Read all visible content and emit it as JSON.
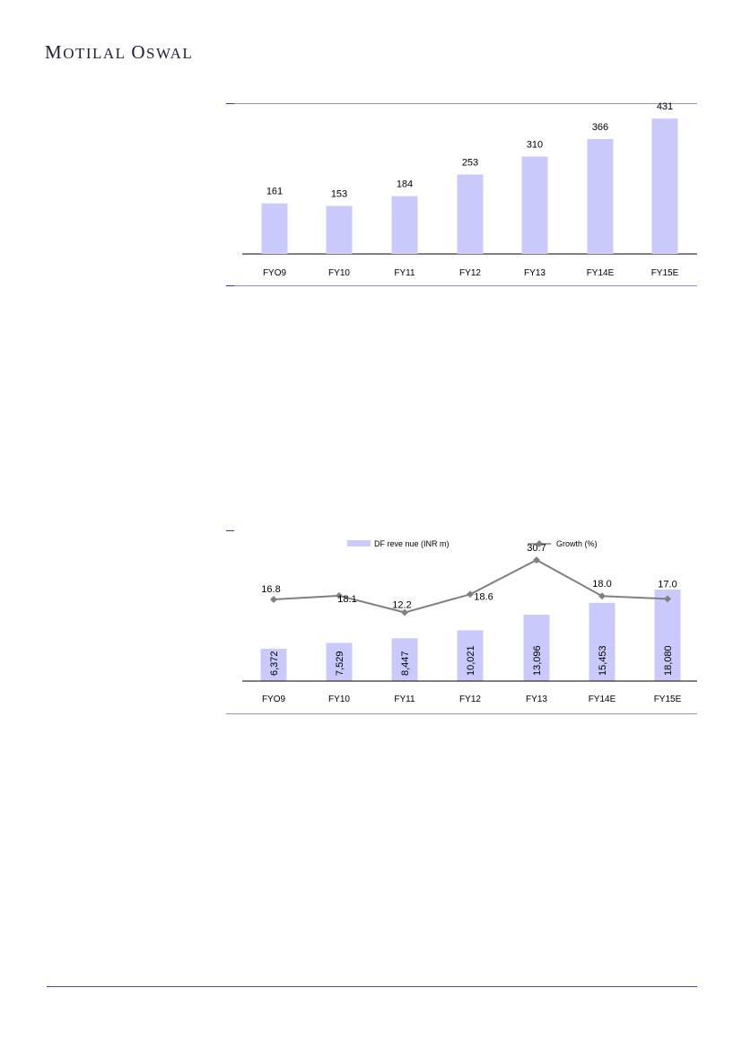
{
  "brand": {
    "first_initial": "M",
    "first_rest": "OTILAL",
    "second_initial": "O",
    "second_rest": "SWAL"
  },
  "colors": {
    "bar": "#c9c9fb",
    "line": "#808080",
    "rule": "#8f8fc0",
    "text": "#000000"
  },
  "chart_data": [
    {
      "type": "bar",
      "title": "",
      "xlabel": "",
      "ylabel": "",
      "categories": [
        "FYO9",
        "FY10",
        "FY11",
        "FY12",
        "FY13",
        "FY14E",
        "FY15E"
      ],
      "values": [
        161,
        153,
        184,
        253,
        310,
        366,
        431
      ],
      "data_labels": [
        "161",
        "153",
        "184",
        "253",
        "310",
        "366",
        "431"
      ],
      "ylim": [
        0,
        500
      ],
      "grid": false,
      "legend": "none"
    },
    {
      "type": "bar+line",
      "title": "",
      "xlabel": "",
      "ylabel": "",
      "categories": [
        "FYO9",
        "FY10",
        "FY11",
        "FY12",
        "FY13",
        "FY14E",
        "FY15E"
      ],
      "series": [
        {
          "name": "DF reve nue (INR m)",
          "type": "bar",
          "values": [
            6372,
            7529,
            8447,
            10021,
            13096,
            15453,
            18080
          ],
          "data_labels": [
            "6,372",
            "7,529",
            "8,447",
            "10,021",
            "13,096",
            "15,453",
            "18,080"
          ]
        },
        {
          "name": "Growth (%)",
          "type": "line",
          "values": [
            16.8,
            18.1,
            12.2,
            18.6,
            30.7,
            18.0,
            17.0
          ],
          "data_labels": [
            "16.8",
            "18.1",
            "12.2",
            "18.6",
            "30.7",
            "18.0",
            "17.0"
          ]
        }
      ],
      "bar_ylim": [
        0,
        28000
      ],
      "line_ylim": [
        -12,
        38
      ],
      "grid": false,
      "legend": "top"
    }
  ]
}
